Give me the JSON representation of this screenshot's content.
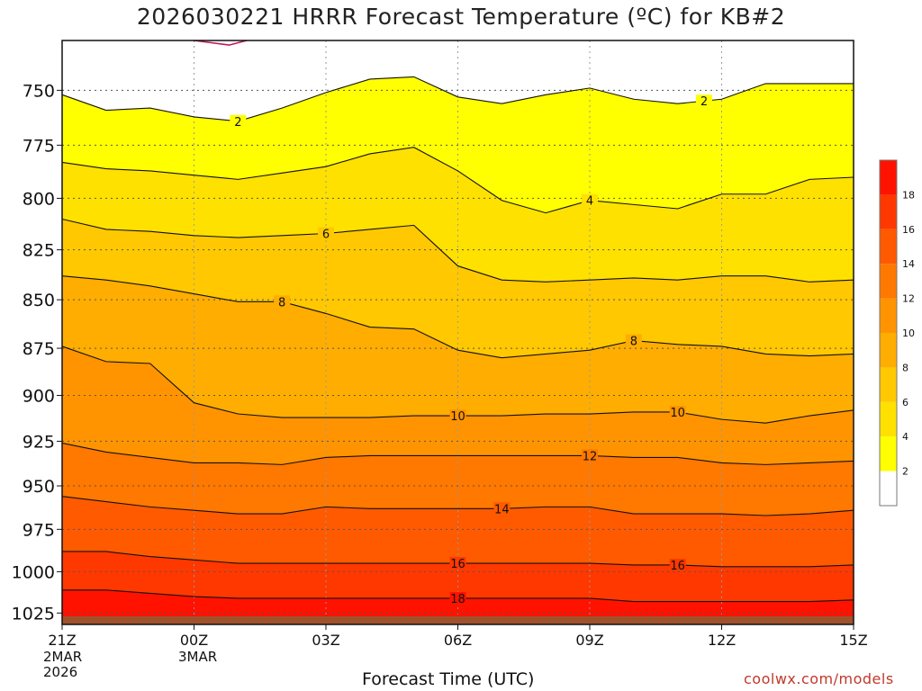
{
  "title": "2026030221 HRRR Forecast Temperature (ºC) for KB#2",
  "credit": "coolwx.com/models",
  "chart_data": {
    "type": "contour",
    "variable": "Temperature",
    "unit": "ºC",
    "xlabel": "Forecast Time (UTC)",
    "x_tick_labels": [
      "21Z",
      "00Z",
      "03Z",
      "06Z",
      "09Z",
      "12Z",
      "15Z"
    ],
    "x_date_labels": [
      {
        "under": "21Z",
        "lines": [
          "2MAR",
          "2026"
        ]
      },
      {
        "under": "00Z",
        "lines": [
          "3MAR"
        ]
      }
    ],
    "x_hours": [
      0,
      3,
      6,
      9,
      12,
      15,
      18
    ],
    "y_tick_labels": [
      "750",
      "775",
      "800",
      "825",
      "850",
      "875",
      "900",
      "925",
      "950",
      "975",
      "1000",
      "1025"
    ],
    "yscale": "log-pressure",
    "y_range_hpa": [
      728,
      1032
    ],
    "surface_level_hpa": 1027,
    "gridlines": "dotted",
    "colorbar": {
      "ticks": [
        "2",
        "4",
        "6",
        "8",
        "10",
        "12",
        "14",
        "16",
        "18"
      ],
      "colors": [
        "#ffffff",
        "#ffff00",
        "#ffe100",
        "#ffc800",
        "#ffad00",
        "#ff9400",
        "#ff7800",
        "#ff5a00",
        "#ff3800",
        "#ff1200"
      ]
    },
    "contours": [
      {
        "level": 2,
        "label": "2",
        "points": [
          [
            0,
            752
          ],
          [
            1,
            759
          ],
          [
            2,
            758
          ],
          [
            3,
            762
          ],
          [
            4,
            764
          ],
          [
            5,
            758
          ],
          [
            6,
            751
          ],
          [
            7,
            745
          ],
          [
            8,
            744
          ],
          [
            9,
            753
          ],
          [
            10,
            756
          ],
          [
            11,
            752
          ],
          [
            12,
            749
          ],
          [
            13,
            754
          ],
          [
            14,
            756
          ],
          [
            15,
            754
          ],
          [
            16,
            747
          ],
          [
            17,
            747
          ],
          [
            18,
            747
          ]
        ],
        "labels_at": [
          4,
          14.6
        ]
      },
      {
        "level": 4,
        "label": "4",
        "points": [
          [
            0,
            783
          ],
          [
            1,
            786
          ],
          [
            2,
            787
          ],
          [
            3,
            789
          ],
          [
            4,
            791
          ],
          [
            5,
            788
          ],
          [
            6,
            785
          ],
          [
            7,
            779
          ],
          [
            8,
            776
          ],
          [
            9,
            787
          ],
          [
            10,
            801
          ],
          [
            11,
            807
          ],
          [
            12,
            801
          ],
          [
            13,
            803
          ],
          [
            14,
            805
          ],
          [
            15,
            798
          ],
          [
            16,
            798
          ],
          [
            17,
            791
          ],
          [
            18,
            790
          ]
        ],
        "labels_at": [
          12
        ]
      },
      {
        "level": 6,
        "label": "6",
        "points": [
          [
            0,
            810
          ],
          [
            1,
            815
          ],
          [
            2,
            816
          ],
          [
            3,
            818
          ],
          [
            4,
            819
          ],
          [
            5,
            818
          ],
          [
            6,
            817
          ],
          [
            7,
            815
          ],
          [
            8,
            813
          ],
          [
            9,
            833
          ],
          [
            10,
            840
          ],
          [
            11,
            841
          ],
          [
            12,
            840
          ],
          [
            13,
            839
          ],
          [
            14,
            840
          ],
          [
            15,
            838
          ],
          [
            16,
            838
          ],
          [
            17,
            841
          ],
          [
            18,
            840
          ]
        ],
        "labels_at": [
          6
        ]
      },
      {
        "level": 8,
        "label": "8",
        "points": [
          [
            0,
            838
          ],
          [
            1,
            840
          ],
          [
            2,
            843
          ],
          [
            3,
            847
          ],
          [
            4,
            851
          ],
          [
            5,
            851
          ],
          [
            6,
            857
          ],
          [
            7,
            864
          ],
          [
            8,
            865
          ],
          [
            9,
            876
          ],
          [
            10,
            880
          ],
          [
            11,
            878
          ],
          [
            12,
            876
          ],
          [
            13,
            871
          ],
          [
            14,
            873
          ],
          [
            15,
            874
          ],
          [
            16,
            878
          ],
          [
            17,
            879
          ],
          [
            18,
            878
          ]
        ],
        "labels_at": [
          5,
          13
        ]
      },
      {
        "level": 10,
        "label": "10",
        "points": [
          [
            0,
            874
          ],
          [
            1,
            882
          ],
          [
            2,
            883
          ],
          [
            3,
            904
          ],
          [
            4,
            910
          ],
          [
            5,
            912
          ],
          [
            6,
            912
          ],
          [
            7,
            912
          ],
          [
            8,
            911
          ],
          [
            9,
            911
          ],
          [
            10,
            911
          ],
          [
            11,
            910
          ],
          [
            12,
            910
          ],
          [
            13,
            909
          ],
          [
            14,
            909
          ],
          [
            15,
            913
          ],
          [
            16,
            915
          ],
          [
            17,
            911
          ],
          [
            18,
            908
          ]
        ],
        "labels_at": [
          9,
          14
        ]
      },
      {
        "level": 12,
        "label": "12",
        "points": [
          [
            0,
            926
          ],
          [
            1,
            931
          ],
          [
            2,
            934
          ],
          [
            3,
            937
          ],
          [
            4,
            937
          ],
          [
            5,
            938
          ],
          [
            6,
            934
          ],
          [
            7,
            933
          ],
          [
            8,
            933
          ],
          [
            9,
            933
          ],
          [
            10,
            933
          ],
          [
            11,
            933
          ],
          [
            12,
            933
          ],
          [
            13,
            934
          ],
          [
            14,
            934
          ],
          [
            15,
            937
          ],
          [
            16,
            938
          ],
          [
            17,
            937
          ],
          [
            18,
            936
          ]
        ],
        "labels_at": [
          12
        ]
      },
      {
        "level": 14,
        "label": "14",
        "points": [
          [
            0,
            956
          ],
          [
            1,
            959
          ],
          [
            2,
            962
          ],
          [
            3,
            964
          ],
          [
            4,
            966
          ],
          [
            5,
            966
          ],
          [
            6,
            962
          ],
          [
            7,
            963
          ],
          [
            8,
            963
          ],
          [
            9,
            963
          ],
          [
            10,
            963
          ],
          [
            11,
            962
          ],
          [
            12,
            962
          ],
          [
            13,
            966
          ],
          [
            14,
            966
          ],
          [
            15,
            966
          ],
          [
            16,
            967
          ],
          [
            17,
            966
          ],
          [
            18,
            964
          ]
        ],
        "labels_at": [
          10
        ]
      },
      {
        "level": 16,
        "label": "16",
        "points": [
          [
            0,
            988
          ],
          [
            1,
            988
          ],
          [
            2,
            991
          ],
          [
            3,
            993
          ],
          [
            4,
            995
          ],
          [
            5,
            995
          ],
          [
            6,
            995
          ],
          [
            7,
            995
          ],
          [
            8,
            995
          ],
          [
            9,
            995
          ],
          [
            10,
            995
          ],
          [
            11,
            995
          ],
          [
            12,
            995
          ],
          [
            13,
            996
          ],
          [
            14,
            996
          ],
          [
            15,
            997
          ],
          [
            16,
            997
          ],
          [
            17,
            997
          ],
          [
            18,
            996
          ]
        ],
        "labels_at": [
          9,
          14
        ]
      },
      {
        "level": 18,
        "label": "18",
        "points": [
          [
            0,
            1011
          ],
          [
            1,
            1011
          ],
          [
            2,
            1013
          ],
          [
            3,
            1015
          ],
          [
            4,
            1016
          ],
          [
            5,
            1016
          ],
          [
            6,
            1016
          ],
          [
            7,
            1016
          ],
          [
            8,
            1016
          ],
          [
            9,
            1016
          ],
          [
            10,
            1016
          ],
          [
            11,
            1016
          ],
          [
            12,
            1016
          ],
          [
            13,
            1018
          ],
          [
            14,
            1018
          ],
          [
            15,
            1018
          ],
          [
            16,
            1018
          ],
          [
            17,
            1018
          ],
          [
            18,
            1017
          ]
        ],
        "labels_at": [
          9
        ]
      }
    ],
    "cold_line_magenta_points": [
      [
        3,
        728
      ],
      [
        3.8,
        730
      ],
      [
        4.2,
        728
      ]
    ]
  }
}
